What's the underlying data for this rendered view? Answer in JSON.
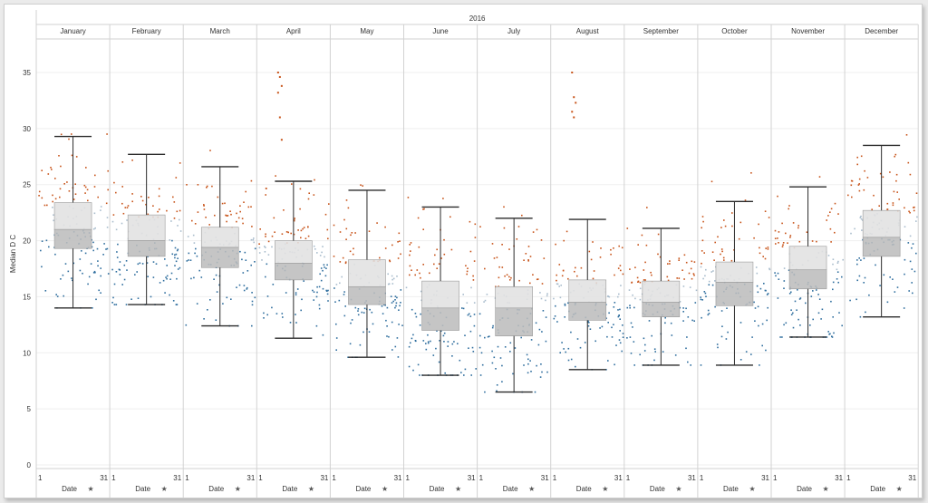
{
  "chart_data": {
    "type": "box",
    "title": "2016",
    "ylabel": "Median D C",
    "ylim": [
      0,
      37
    ],
    "yticks": [
      0,
      5,
      10,
      15,
      20,
      25,
      30,
      35
    ],
    "grid": true,
    "facet_label": "Date",
    "day_range": [
      1,
      31
    ],
    "months": [
      {
        "name": "January",
        "whisker_low": 14.0,
        "q1": 19.3,
        "median": 21.0,
        "q3": 23.4,
        "whisker_high": 29.3,
        "point_min": 14.0,
        "point_max": 29.5,
        "outliers": []
      },
      {
        "name": "February",
        "whisker_low": 14.3,
        "q1": 18.6,
        "median": 20.0,
        "q3": 22.3,
        "whisker_high": 27.7,
        "point_min": 14.3,
        "point_max": 29.8,
        "outliers": []
      },
      {
        "name": "March",
        "whisker_low": 12.4,
        "q1": 17.6,
        "median": 19.4,
        "q3": 21.2,
        "whisker_high": 26.6,
        "point_min": 12.4,
        "point_max": 29.8,
        "outliers": []
      },
      {
        "name": "April",
        "whisker_low": 11.3,
        "q1": 16.5,
        "median": 18.0,
        "q3": 20.0,
        "whisker_high": 25.3,
        "point_min": 11.3,
        "point_max": 27.0,
        "outliers": [
          35.0,
          34.6,
          33.8,
          33.2,
          31.0,
          29.0
        ]
      },
      {
        "name": "May",
        "whisker_low": 9.6,
        "q1": 14.3,
        "median": 15.9,
        "q3": 18.3,
        "whisker_high": 24.5,
        "point_min": 9.6,
        "point_max": 29.7,
        "outliers": []
      },
      {
        "name": "June",
        "whisker_low": 8.0,
        "q1": 12.0,
        "median": 14.0,
        "q3": 16.4,
        "whisker_high": 23.0,
        "point_min": 8.0,
        "point_max": 30.5,
        "outliers": []
      },
      {
        "name": "July",
        "whisker_low": 6.5,
        "q1": 11.5,
        "median": 14.0,
        "q3": 15.9,
        "whisker_high": 22.0,
        "point_min": 6.5,
        "point_max": 29.2,
        "outliers": []
      },
      {
        "name": "August",
        "whisker_low": 8.5,
        "q1": 12.9,
        "median": 14.5,
        "q3": 16.5,
        "whisker_high": 21.9,
        "point_min": 8.5,
        "point_max": 27.5,
        "outliers": [
          35.0,
          32.8,
          32.3,
          31.5,
          31.0
        ]
      },
      {
        "name": "September",
        "whisker_low": 8.9,
        "q1": 13.2,
        "median": 14.5,
        "q3": 16.4,
        "whisker_high": 21.1,
        "point_min": 8.9,
        "point_max": 27.0,
        "outliers": []
      },
      {
        "name": "October",
        "whisker_low": 8.9,
        "q1": 14.2,
        "median": 16.3,
        "q3": 18.1,
        "whisker_high": 23.5,
        "point_min": 8.9,
        "point_max": 27.7,
        "outliers": []
      },
      {
        "name": "November",
        "whisker_low": 11.4,
        "q1": 15.7,
        "median": 17.4,
        "q3": 19.5,
        "whisker_high": 24.8,
        "point_min": 11.4,
        "point_max": 27.0,
        "outliers": []
      },
      {
        "name": "December",
        "whisker_low": 13.2,
        "q1": 18.6,
        "median": 20.3,
        "q3": 22.7,
        "whisker_high": 28.5,
        "point_min": 13.2,
        "point_max": 32.2,
        "outliers": []
      }
    ]
  },
  "colors": {
    "high_points": "#c8541a",
    "low_points": "#2f6e9e",
    "mid_points": "#a9bccc",
    "box_upper_fill": "#e1e1e1",
    "box_lower_fill": "#bdbdbd",
    "whisker": "#2b2b2b",
    "divider": "#d2d2d2",
    "gridline": "#efefef",
    "text": "#333333"
  }
}
